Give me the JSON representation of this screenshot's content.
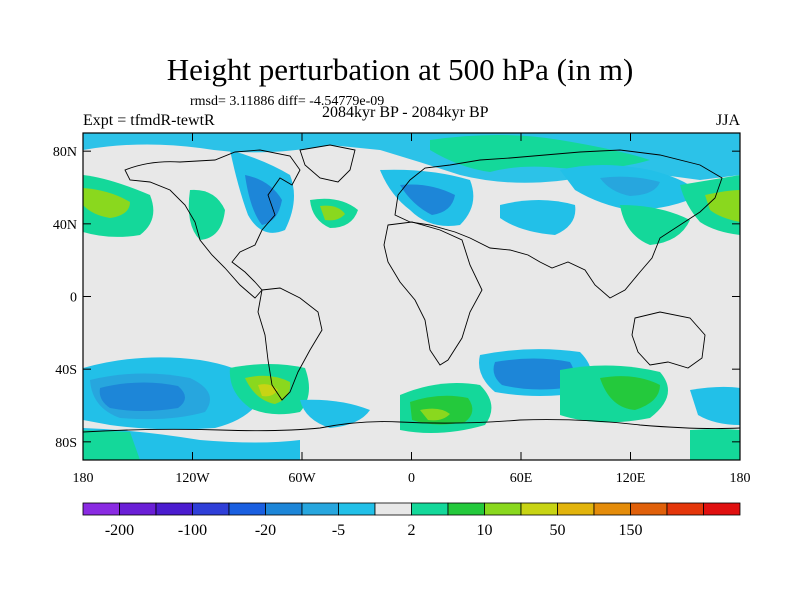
{
  "title": "Height perturbation at 500 hPa (in m)",
  "rmsd_text": "rmsd= 3.11886 diff= -4.54779e-09",
  "expt_text": "Expt = tfmdR-tewtR",
  "period_text": "2084kyr BP - 2084kyr BP",
  "season": "JJA",
  "x_ticks": [
    {
      "label": "180",
      "lon": -180
    },
    {
      "label": "120W",
      "lon": -120
    },
    {
      "label": "60W",
      "lon": -60
    },
    {
      "label": "0",
      "lon": 0
    },
    {
      "label": "60E",
      "lon": 60
    },
    {
      "label": "120E",
      "lon": 120
    },
    {
      "label": "180",
      "lon": 180
    }
  ],
  "y_ticks": [
    {
      "label": "80N",
      "lat": 80
    },
    {
      "label": "40N",
      "lat": 40
    },
    {
      "label": "0",
      "lat": 0
    },
    {
      "label": "40S",
      "lat": -40
    },
    {
      "label": "80S",
      "lat": -80
    }
  ],
  "colorbar": {
    "colors": [
      "#8a2be2",
      "#6a1fd6",
      "#4b1ccf",
      "#2f3fd8",
      "#1a5fe0",
      "#1d86d8",
      "#27a6de",
      "#22c0e8",
      "#e8e8e8",
      "#14d89a",
      "#24c93c",
      "#8ad81e",
      "#c8d414",
      "#e2b40c",
      "#e48c0a",
      "#e0600a",
      "#e4360a",
      "#e01010"
    ],
    "labels": [
      {
        "text": "-200",
        "index": 1
      },
      {
        "text": "-100",
        "index": 3
      },
      {
        "text": "-20",
        "index": 5
      },
      {
        "text": "-5",
        "index": 7
      },
      {
        "text": "2",
        "index": 9
      },
      {
        "text": "10",
        "index": 11
      },
      {
        "text": "50",
        "index": 13
      },
      {
        "text": "150",
        "index": 15
      }
    ]
  }
}
